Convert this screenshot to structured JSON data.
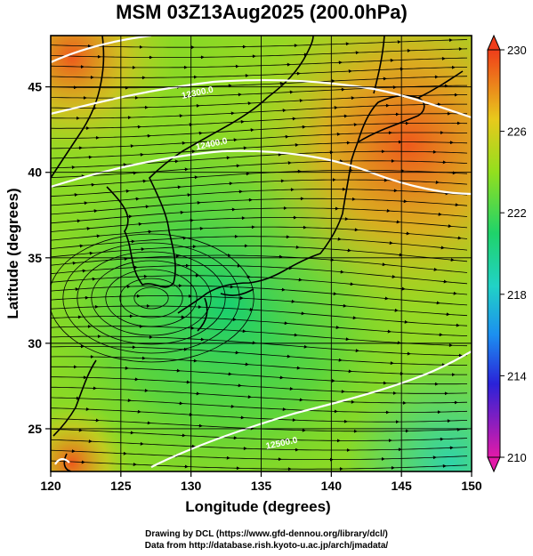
{
  "title": "MSM 03Z13Aug2025 (200.0hPa)",
  "map": {
    "lon_range": [
      120,
      150
    ],
    "lat_range": [
      22.5,
      48
    ],
    "lon_ticks": [
      "120",
      "125",
      "130",
      "135",
      "140",
      "145",
      "150"
    ],
    "lat_ticks": [
      "25",
      "30",
      "35",
      "40",
      "45"
    ],
    "lon_gridlines": [
      125,
      130,
      135,
      140,
      145
    ],
    "lat_gridlines": [
      25,
      30,
      35,
      40,
      45
    ],
    "xlabel": "Longitude (degrees)",
    "ylabel": "Latitude  (degrees)"
  },
  "contour_labels": [
    {
      "text": "12500.0",
      "lon": 136.5,
      "lat": 24.0
    },
    {
      "text": "12400.0",
      "lon": 131.5,
      "lat": 41.5
    },
    {
      "text": "12300.0",
      "lon": 130.5,
      "lat": 44.5
    }
  ],
  "colorbar": {
    "labels": [
      "230",
      "226",
      "222",
      "218",
      "214",
      "210"
    ],
    "min": 210,
    "max": 230,
    "colors": [
      "#e8189e",
      "#3a1fd6",
      "#27b7ee",
      "#1fd37a",
      "#93df1e",
      "#d8c51a",
      "#ef4a1a"
    ]
  },
  "credits": {
    "line1": "Drawing by DCL (https://www.gfd-dennou.org/library/dcl/)",
    "line2": "Data from http://database.rish.kyoto-u.ac.jp/arch/jmadata/"
  }
}
